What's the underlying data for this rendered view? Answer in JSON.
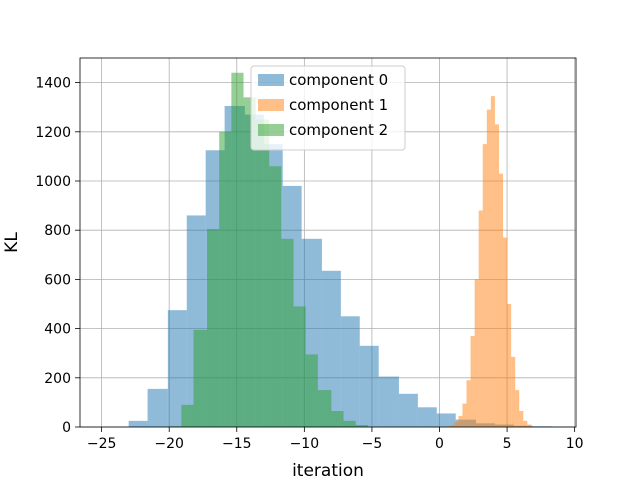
{
  "chart_data": {
    "type": "histogram",
    "title": "",
    "xlabel": "iteration",
    "ylabel": "KL",
    "xlim": [
      -26.6,
      10.1
    ],
    "ylim": [
      0,
      1500
    ],
    "xticks": [
      -25,
      -20,
      -15,
      -10,
      -5,
      0,
      5,
      10
    ],
    "yticks": [
      0,
      200,
      400,
      600,
      800,
      1000,
      1200,
      1400
    ],
    "grid": true,
    "legend": "upper center",
    "series": [
      {
        "name": "component 0",
        "color": "#1f77b4",
        "opacity": 0.5,
        "bins": [
          {
            "x0": -23.0,
            "x1": -21.6,
            "count": 25
          },
          {
            "x0": -21.6,
            "x1": -20.1,
            "count": 155
          },
          {
            "x0": -20.1,
            "x1": -18.7,
            "count": 475
          },
          {
            "x0": -18.7,
            "x1": -17.3,
            "count": 860
          },
          {
            "x0": -17.3,
            "x1": -15.9,
            "count": 1125
          },
          {
            "x0": -15.9,
            "x1": -14.4,
            "count": 1305
          },
          {
            "x0": -14.4,
            "x1": -13.0,
            "count": 1270
          },
          {
            "x0": -13.0,
            "x1": -11.6,
            "count": 1150
          },
          {
            "x0": -11.6,
            "x1": -10.2,
            "count": 980
          },
          {
            "x0": -10.2,
            "x1": -8.7,
            "count": 765
          },
          {
            "x0": -8.7,
            "x1": -7.3,
            "count": 635
          },
          {
            "x0": -7.3,
            "x1": -5.9,
            "count": 450
          },
          {
            "x0": -5.9,
            "x1": -4.5,
            "count": 330
          },
          {
            "x0": -4.5,
            "x1": -3.0,
            "count": 205
          },
          {
            "x0": -3.0,
            "x1": -1.6,
            "count": 135
          },
          {
            "x0": -1.6,
            "x1": -0.2,
            "count": 80
          },
          {
            "x0": -0.2,
            "x1": 1.2,
            "count": 55
          },
          {
            "x0": 1.2,
            "x1": 2.7,
            "count": 30
          },
          {
            "x0": 2.7,
            "x1": 4.1,
            "count": 15
          },
          {
            "x0": 4.1,
            "x1": 5.5,
            "count": 10
          },
          {
            "x0": 5.5,
            "x1": 6.9,
            "count": 5
          },
          {
            "x0": 6.9,
            "x1": 8.3,
            "count": 3
          },
          {
            "x0": 8.3,
            "x1": 9.8,
            "count": 2
          }
        ]
      },
      {
        "name": "component 1",
        "color": "#ff7f0e",
        "opacity": 0.5,
        "bins": [
          {
            "x0": 0.5,
            "x1": 0.8,
            "count": 3
          },
          {
            "x0": 0.8,
            "x1": 1.1,
            "count": 8
          },
          {
            "x0": 1.1,
            "x1": 1.4,
            "count": 20
          },
          {
            "x0": 1.4,
            "x1": 1.7,
            "count": 45
          },
          {
            "x0": 1.7,
            "x1": 2.0,
            "count": 95
          },
          {
            "x0": 2.0,
            "x1": 2.3,
            "count": 190
          },
          {
            "x0": 2.3,
            "x1": 2.6,
            "count": 370
          },
          {
            "x0": 2.6,
            "x1": 2.9,
            "count": 600
          },
          {
            "x0": 2.9,
            "x1": 3.2,
            "count": 880
          },
          {
            "x0": 3.2,
            "x1": 3.5,
            "count": 1150
          },
          {
            "x0": 3.5,
            "x1": 3.8,
            "count": 1290
          },
          {
            "x0": 3.8,
            "x1": 4.1,
            "count": 1345
          },
          {
            "x0": 4.1,
            "x1": 4.4,
            "count": 1230
          },
          {
            "x0": 4.4,
            "x1": 4.7,
            "count": 1030
          },
          {
            "x0": 4.7,
            "x1": 5.0,
            "count": 770
          },
          {
            "x0": 5.0,
            "x1": 5.3,
            "count": 500
          },
          {
            "x0": 5.3,
            "x1": 5.6,
            "count": 285
          },
          {
            "x0": 5.6,
            "x1": 5.9,
            "count": 150
          },
          {
            "x0": 5.9,
            "x1": 6.2,
            "count": 65
          },
          {
            "x0": 6.2,
            "x1": 6.5,
            "count": 25
          },
          {
            "x0": 6.5,
            "x1": 6.8,
            "count": 10
          }
        ]
      },
      {
        "name": "component 2",
        "color": "#2ca02c",
        "opacity": 0.5,
        "bins": [
          {
            "x0": -20.0,
            "x1": -19.1,
            "count": 3
          },
          {
            "x0": -19.1,
            "x1": -18.2,
            "count": 90
          },
          {
            "x0": -18.2,
            "x1": -17.2,
            "count": 395
          },
          {
            "x0": -17.2,
            "x1": -16.3,
            "count": 805
          },
          {
            "x0": -16.3,
            "x1": -15.4,
            "count": 1200
          },
          {
            "x0": -15.4,
            "x1": -14.5,
            "count": 1440
          },
          {
            "x0": -14.5,
            "x1": -13.6,
            "count": 1340
          },
          {
            "x0": -13.6,
            "x1": -12.6,
            "count": 1250
          },
          {
            "x0": -12.6,
            "x1": -11.7,
            "count": 1060
          },
          {
            "x0": -11.7,
            "x1": -10.8,
            "count": 765
          },
          {
            "x0": -10.8,
            "x1": -9.9,
            "count": 490
          },
          {
            "x0": -9.9,
            "x1": -9.0,
            "count": 295
          },
          {
            "x0": -9.0,
            "x1": -8.0,
            "count": 150
          },
          {
            "x0": -8.0,
            "x1": -7.1,
            "count": 65
          },
          {
            "x0": -7.1,
            "x1": -6.2,
            "count": 25
          },
          {
            "x0": -6.2,
            "x1": -5.3,
            "count": 8
          }
        ]
      }
    ]
  }
}
